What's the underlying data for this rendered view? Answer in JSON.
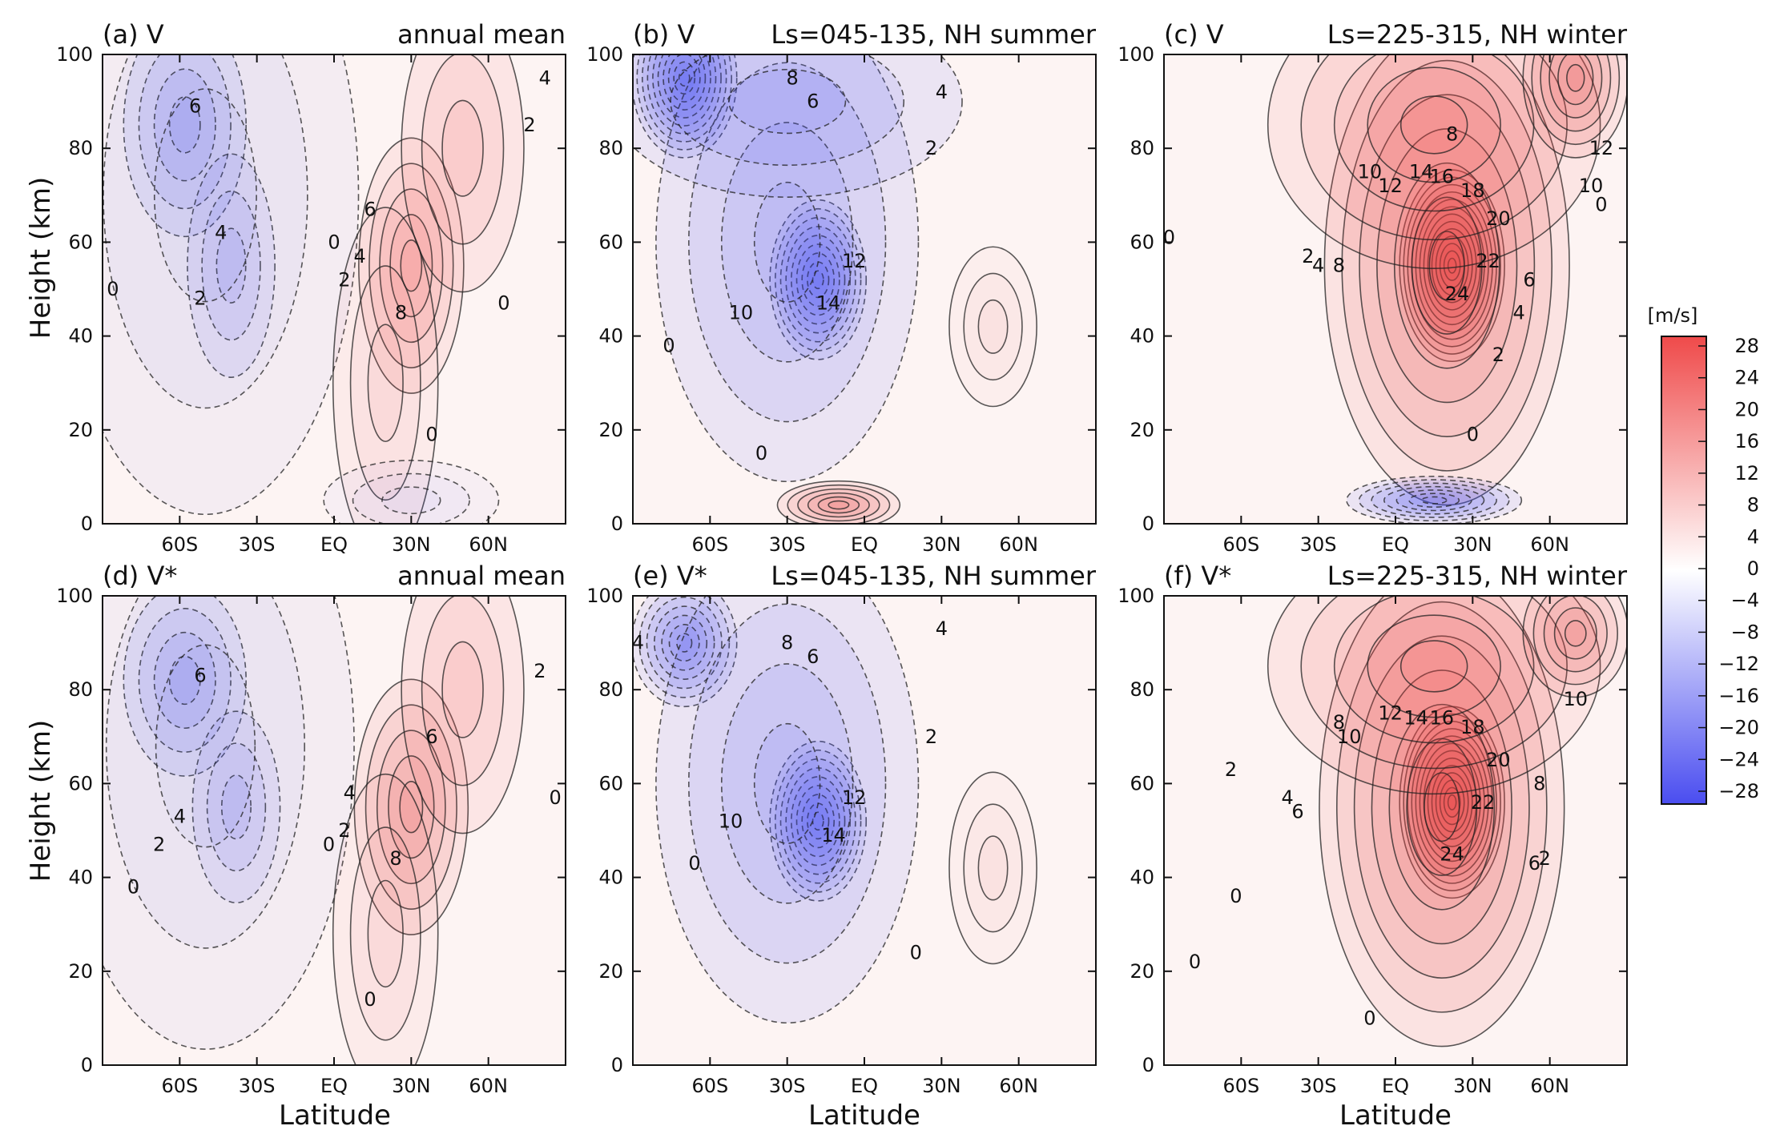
{
  "figure": {
    "xlabel": "Latitude",
    "ylabel": "Height (km)"
  },
  "colorbar": {
    "unit": "[m/s]",
    "ticks": [
      "28",
      "24",
      "20",
      "16",
      "12",
      "8",
      "4",
      "0",
      "−4",
      "−8",
      "−12",
      "−16",
      "−20",
      "−24",
      "−28"
    ],
    "pos_color": "#ef4a4a",
    "neg_color": "#4a4df0"
  },
  "chart_data": [
    {
      "type": "heatmap",
      "id": "a",
      "label": "(a) V",
      "period": "annual mean",
      "xticks": [
        "60S",
        "30S",
        "EQ",
        "30N",
        "60N"
      ],
      "xtick_values": [
        -60,
        -30,
        0,
        30,
        60
      ],
      "yticks": [
        "0",
        "20",
        "40",
        "60",
        "80",
        "100"
      ],
      "xlim": [
        -90,
        90
      ],
      "ylim": [
        0,
        100
      ],
      "cells": [
        {
          "lat": -58,
          "z": 85,
          "v": -8,
          "slat": 14,
          "sz": 14
        },
        {
          "lat": -40,
          "z": 55,
          "v": -5,
          "slat": 10,
          "sz": 14
        },
        {
          "lat": -50,
          "z": 70,
          "v": -3,
          "slat": 35,
          "sz": 40
        },
        {
          "lat": 30,
          "z": 55,
          "v": 9,
          "slat": 12,
          "sz": 16
        },
        {
          "lat": 50,
          "z": 80,
          "v": 5,
          "slat": 14,
          "sz": 18
        },
        {
          "lat": 20,
          "z": 30,
          "v": 3,
          "slat": 12,
          "sz": 22
        },
        {
          "lat": 30,
          "z": 5,
          "v": -2,
          "slat": 20,
          "sz": 5
        }
      ],
      "labels": [
        {
          "text": "6",
          "lat": -54,
          "z": 89
        },
        {
          "text": "4",
          "lat": -44,
          "z": 62
        },
        {
          "text": "2",
          "lat": -52,
          "z": 48
        },
        {
          "text": "0",
          "lat": -86,
          "z": 50
        },
        {
          "text": "0",
          "lat": 0,
          "z": 60
        },
        {
          "text": "2",
          "lat": 4,
          "z": 52
        },
        {
          "text": "4",
          "lat": 10,
          "z": 57
        },
        {
          "text": "6",
          "lat": 14,
          "z": 67
        },
        {
          "text": "8",
          "lat": 26,
          "z": 45
        },
        {
          "text": "0",
          "lat": 66,
          "z": 47
        },
        {
          "text": "2",
          "lat": 76,
          "z": 85
        },
        {
          "text": "4",
          "lat": 82,
          "z": 95
        },
        {
          "text": "0",
          "lat": 38,
          "z": 19
        }
      ]
    },
    {
      "type": "heatmap",
      "id": "b",
      "label": "(b) V",
      "period": "Ls=045-135, NH summer",
      "xticks": [
        "60S",
        "30S",
        "EQ",
        "30N",
        "60N"
      ],
      "xtick_values": [
        -60,
        -30,
        0,
        30,
        60
      ],
      "yticks": [
        "0",
        "20",
        "40",
        "60",
        "80",
        "100"
      ],
      "xlim": [
        -90,
        90
      ],
      "ylim": [
        0,
        100
      ],
      "cells": [
        {
          "lat": -70,
          "z": 95,
          "v": -20,
          "slat": 12,
          "sz": 10
        },
        {
          "lat": -18,
          "z": 52,
          "v": -18,
          "slat": 11,
          "sz": 10
        },
        {
          "lat": -30,
          "z": 60,
          "v": -8,
          "slat": 30,
          "sz": 30
        },
        {
          "lat": -30,
          "z": 90,
          "v": -6,
          "slat": 40,
          "sz": 12
        },
        {
          "lat": -10,
          "z": 4,
          "v": 12,
          "slat": 14,
          "sz": 3
        },
        {
          "lat": 50,
          "z": 42,
          "v": 2,
          "slat": 10,
          "sz": 10
        }
      ],
      "labels": [
        {
          "text": "8",
          "lat": -28,
          "z": 95
        },
        {
          "text": "6",
          "lat": -20,
          "z": 90
        },
        {
          "text": "4",
          "lat": 30,
          "z": 92
        },
        {
          "text": "2",
          "lat": 26,
          "z": 80
        },
        {
          "text": "12",
          "lat": -4,
          "z": 56
        },
        {
          "text": "14",
          "lat": -14,
          "z": 47
        },
        {
          "text": "10",
          "lat": -48,
          "z": 45
        },
        {
          "text": "0",
          "lat": -76,
          "z": 38
        },
        {
          "text": "0",
          "lat": -40,
          "z": 15
        }
      ]
    },
    {
      "type": "heatmap",
      "id": "c",
      "label": "(c) V",
      "period": "Ls=225-315, NH winter",
      "xticks": [
        "60S",
        "30S",
        "EQ",
        "30N",
        "60N"
      ],
      "xtick_values": [
        -60,
        -30,
        0,
        30,
        60
      ],
      "yticks": [
        "0",
        "20",
        "40",
        "60",
        "80",
        "100"
      ],
      "xlim": [
        -90,
        90
      ],
      "ylim": [
        0,
        100
      ],
      "cells": [
        {
          "lat": 22,
          "z": 55,
          "v": 26,
          "slat": 12,
          "sz": 12
        },
        {
          "lat": 20,
          "z": 55,
          "v": 14,
          "slat": 28,
          "sz": 30
        },
        {
          "lat": 15,
          "z": 85,
          "v": 9,
          "slat": 38,
          "sz": 18
        },
        {
          "lat": 70,
          "z": 95,
          "v": 12,
          "slat": 12,
          "sz": 10
        },
        {
          "lat": 15,
          "z": 5,
          "v": -14,
          "slat": 20,
          "sz": 3
        }
      ],
      "labels": [
        {
          "text": "8",
          "lat": 22,
          "z": 83
        },
        {
          "text": "10",
          "lat": -10,
          "z": 75
        },
        {
          "text": "12",
          "lat": -2,
          "z": 72
        },
        {
          "text": "14",
          "lat": 10,
          "z": 75
        },
        {
          "text": "16",
          "lat": 18,
          "z": 74
        },
        {
          "text": "18",
          "lat": 30,
          "z": 71
        },
        {
          "text": "20",
          "lat": 40,
          "z": 65
        },
        {
          "text": "22",
          "lat": 36,
          "z": 56
        },
        {
          "text": "24",
          "lat": 24,
          "z": 49
        },
        {
          "text": "6",
          "lat": 52,
          "z": 52
        },
        {
          "text": "4",
          "lat": 48,
          "z": 45
        },
        {
          "text": "2",
          "lat": 40,
          "z": 36
        },
        {
          "text": "2",
          "lat": -34,
          "z": 57
        },
        {
          "text": "4",
          "lat": -30,
          "z": 55
        },
        {
          "text": "8",
          "lat": -22,
          "z": 55
        },
        {
          "text": "0",
          "lat": -88,
          "z": 61
        },
        {
          "text": "0",
          "lat": 80,
          "z": 68
        },
        {
          "text": "10",
          "lat": 76,
          "z": 72
        },
        {
          "text": "12",
          "lat": 80,
          "z": 80
        },
        {
          "text": "0",
          "lat": 30,
          "z": 19
        }
      ]
    },
    {
      "type": "heatmap",
      "id": "d",
      "label": "(d) V*",
      "period": "annual mean",
      "xticks": [
        "60S",
        "30S",
        "EQ",
        "30N",
        "60N"
      ],
      "xtick_values": [
        -60,
        -30,
        0,
        30,
        60
      ],
      "yticks": [
        "0",
        "20",
        "40",
        "60",
        "80",
        "100"
      ],
      "xlim": [
        -90,
        90
      ],
      "ylim": [
        0,
        100
      ],
      "cells": [
        {
          "lat": -58,
          "z": 82,
          "v": -8,
          "slat": 14,
          "sz": 12
        },
        {
          "lat": -38,
          "z": 55,
          "v": -5,
          "slat": 10,
          "sz": 12
        },
        {
          "lat": -50,
          "z": 68,
          "v": -3,
          "slat": 34,
          "sz": 38
        },
        {
          "lat": 30,
          "z": 55,
          "v": 10,
          "slat": 13,
          "sz": 16
        },
        {
          "lat": 50,
          "z": 80,
          "v": 5,
          "slat": 14,
          "sz": 18
        },
        {
          "lat": 20,
          "z": 28,
          "v": 3,
          "slat": 12,
          "sz": 20
        }
      ],
      "labels": [
        {
          "text": "6",
          "lat": -52,
          "z": 83
        },
        {
          "text": "4",
          "lat": -60,
          "z": 53
        },
        {
          "text": "2",
          "lat": -68,
          "z": 47
        },
        {
          "text": "0",
          "lat": -78,
          "z": 38
        },
        {
          "text": "0",
          "lat": -2,
          "z": 47
        },
        {
          "text": "2",
          "lat": 4,
          "z": 50
        },
        {
          "text": "4",
          "lat": 6,
          "z": 58
        },
        {
          "text": "6",
          "lat": 38,
          "z": 70
        },
        {
          "text": "8",
          "lat": 24,
          "z": 44
        },
        {
          "text": "2",
          "lat": 80,
          "z": 84
        },
        {
          "text": "0",
          "lat": 86,
          "z": 57
        },
        {
          "text": "0",
          "lat": 14,
          "z": 14
        }
      ]
    },
    {
      "type": "heatmap",
      "id": "e",
      "label": "(e) V*",
      "period": "Ls=045-135, NH summer",
      "xticks": [
        "60S",
        "30S",
        "EQ",
        "30N",
        "60N"
      ],
      "xtick_values": [
        -60,
        -30,
        0,
        30,
        60
      ],
      "yticks": [
        "0",
        "20",
        "40",
        "60",
        "80",
        "100"
      ],
      "xlim": [
        -90,
        90
      ],
      "ylim": [
        0,
        100
      ],
      "cells": [
        {
          "lat": -70,
          "z": 90,
          "v": -14,
          "slat": 12,
          "sz": 8
        },
        {
          "lat": -18,
          "z": 52,
          "v": -18,
          "slat": 11,
          "sz": 10
        },
        {
          "lat": -30,
          "z": 60,
          "v": -8,
          "slat": 30,
          "sz": 30
        },
        {
          "lat": 50,
          "z": 42,
          "v": 2,
          "slat": 10,
          "sz": 12
        }
      ],
      "labels": [
        {
          "text": "4",
          "lat": -88,
          "z": 90
        },
        {
          "text": "8",
          "lat": -30,
          "z": 90
        },
        {
          "text": "6",
          "lat": -20,
          "z": 87
        },
        {
          "text": "4",
          "lat": 30,
          "z": 93
        },
        {
          "text": "2",
          "lat": 26,
          "z": 70
        },
        {
          "text": "12",
          "lat": -4,
          "z": 57
        },
        {
          "text": "14",
          "lat": -12,
          "z": 49
        },
        {
          "text": "10",
          "lat": -52,
          "z": 52
        },
        {
          "text": "0",
          "lat": -66,
          "z": 43
        },
        {
          "text": "0",
          "lat": 20,
          "z": 24
        }
      ]
    },
    {
      "type": "heatmap",
      "id": "f",
      "label": "(f) V*",
      "period": "Ls=225-315, NH winter",
      "xticks": [
        "60S",
        "30S",
        "EQ",
        "30N",
        "60N"
      ],
      "xtick_values": [
        -60,
        -30,
        0,
        30,
        60
      ],
      "yticks": [
        "0",
        "20",
        "40",
        "60",
        "80",
        "100"
      ],
      "xlim": [
        -90,
        90
      ],
      "ylim": [
        0,
        100
      ],
      "cells": [
        {
          "lat": 22,
          "z": 56,
          "v": 26,
          "slat": 12,
          "sz": 12
        },
        {
          "lat": 18,
          "z": 55,
          "v": 14,
          "slat": 28,
          "sz": 30
        },
        {
          "lat": 15,
          "z": 85,
          "v": 9,
          "slat": 38,
          "sz": 16
        },
        {
          "lat": 70,
          "z": 92,
          "v": 10,
          "slat": 12,
          "sz": 8
        }
      ],
      "labels": [
        {
          "text": "8",
          "lat": -22,
          "z": 73
        },
        {
          "text": "10",
          "lat": -18,
          "z": 70
        },
        {
          "text": "12",
          "lat": -2,
          "z": 75
        },
        {
          "text": "14",
          "lat": 8,
          "z": 74
        },
        {
          "text": "16",
          "lat": 18,
          "z": 74
        },
        {
          "text": "18",
          "lat": 30,
          "z": 72
        },
        {
          "text": "20",
          "lat": 40,
          "z": 65
        },
        {
          "text": "22",
          "lat": 34,
          "z": 56
        },
        {
          "text": "24",
          "lat": 22,
          "z": 45
        },
        {
          "text": "8",
          "lat": 56,
          "z": 60
        },
        {
          "text": "6",
          "lat": 54,
          "z": 43
        },
        {
          "text": "2",
          "lat": 58,
          "z": 44
        },
        {
          "text": "10",
          "lat": 70,
          "z": 78
        },
        {
          "text": "6",
          "lat": -38,
          "z": 54
        },
        {
          "text": "4",
          "lat": -42,
          "z": 57
        },
        {
          "text": "2",
          "lat": -64,
          "z": 63
        },
        {
          "text": "0",
          "lat": -62,
          "z": 36
        },
        {
          "text": "0",
          "lat": -78,
          "z": 22
        },
        {
          "text": "0",
          "lat": -10,
          "z": 10
        }
      ]
    }
  ]
}
